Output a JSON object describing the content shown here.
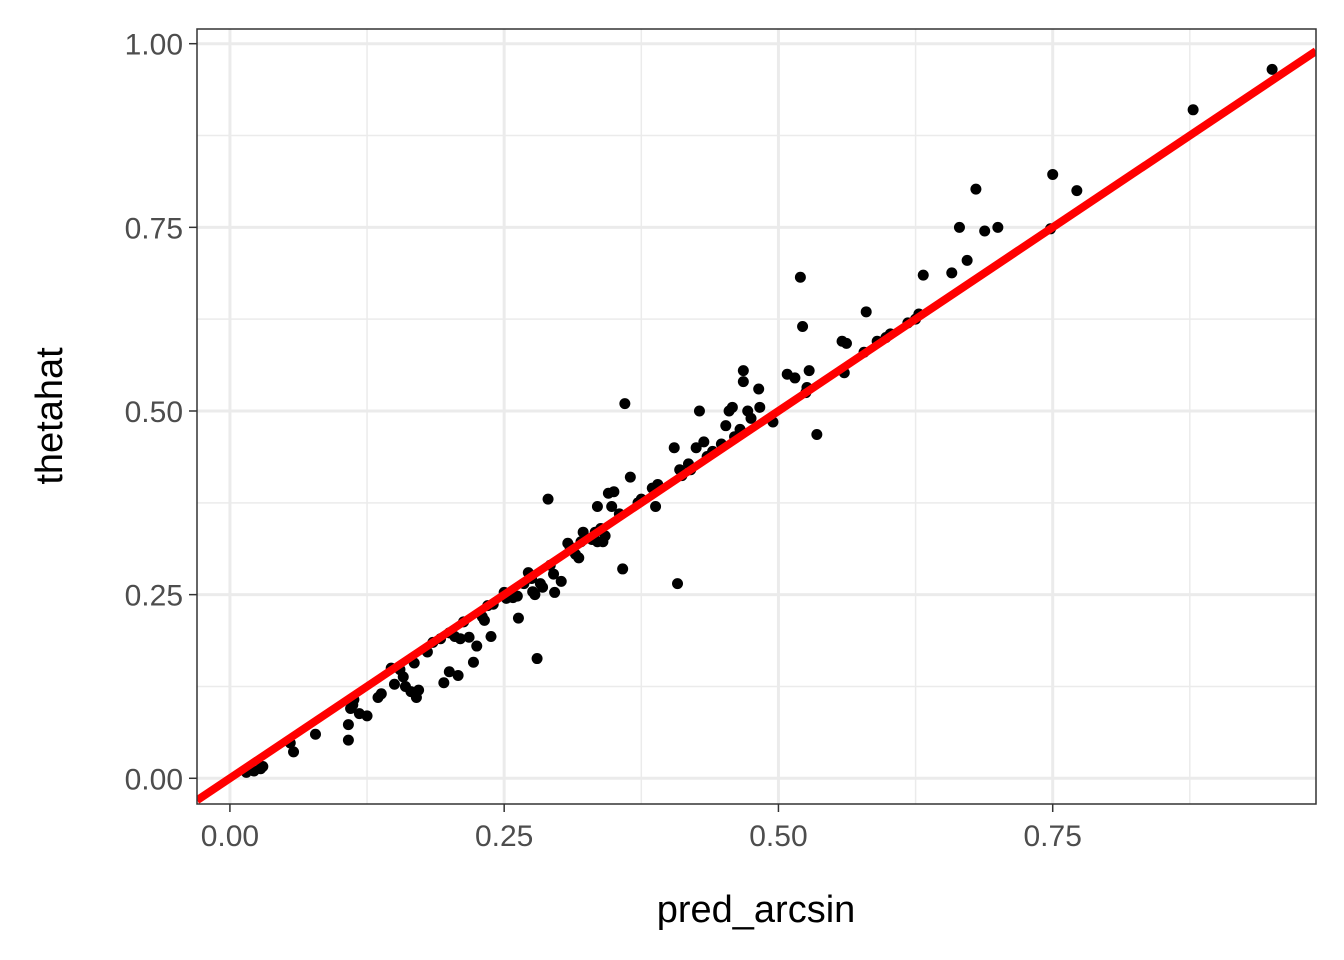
{
  "chart_data": {
    "type": "scatter",
    "title": "",
    "xlabel": "pred_arcsin",
    "ylabel": "thetahat",
    "xlim": [
      -0.03,
      0.99
    ],
    "ylim": [
      -0.035,
      1.02
    ],
    "x_ticks": [
      0,
      0.25,
      0.5,
      0.75
    ],
    "x_tick_labels": [
      "0.00",
      "0.25",
      "0.50",
      "0.75"
    ],
    "y_ticks": [
      0,
      0.25,
      0.5,
      0.75,
      1.0
    ],
    "y_tick_labels": [
      "0.00",
      "0.25",
      "0.50",
      "0.75",
      "1.00"
    ],
    "grid": true,
    "reference_line": {
      "type": "identity",
      "slope": 1,
      "intercept": 0,
      "color": "#ff0000"
    },
    "colors": {
      "points": "#000000",
      "line": "#ff0000",
      "grid": "#ebebeb",
      "panel_border": "#333333"
    },
    "points": [
      [
        0.015,
        0.008
      ],
      [
        0.022,
        0.01
      ],
      [
        0.028,
        0.013
      ],
      [
        0.03,
        0.016
      ],
      [
        0.055,
        0.048
      ],
      [
        0.058,
        0.036
      ],
      [
        0.078,
        0.06
      ],
      [
        0.108,
        0.052
      ],
      [
        0.108,
        0.073
      ],
      [
        0.11,
        0.095
      ],
      [
        0.112,
        0.1
      ],
      [
        0.113,
        0.107
      ],
      [
        0.118,
        0.088
      ],
      [
        0.125,
        0.085
      ],
      [
        0.135,
        0.11
      ],
      [
        0.138,
        0.115
      ],
      [
        0.147,
        0.15
      ],
      [
        0.15,
        0.128
      ],
      [
        0.155,
        0.148
      ],
      [
        0.158,
        0.138
      ],
      [
        0.16,
        0.125
      ],
      [
        0.165,
        0.118
      ],
      [
        0.168,
        0.157
      ],
      [
        0.17,
        0.11
      ],
      [
        0.172,
        0.12
      ],
      [
        0.18,
        0.172
      ],
      [
        0.185,
        0.185
      ],
      [
        0.192,
        0.19
      ],
      [
        0.195,
        0.13
      ],
      [
        0.2,
        0.198
      ],
      [
        0.2,
        0.145
      ],
      [
        0.205,
        0.193
      ],
      [
        0.208,
        0.14
      ],
      [
        0.21,
        0.19
      ],
      [
        0.213,
        0.213
      ],
      [
        0.218,
        0.192
      ],
      [
        0.222,
        0.158
      ],
      [
        0.225,
        0.18
      ],
      [
        0.23,
        0.22
      ],
      [
        0.232,
        0.215
      ],
      [
        0.235,
        0.235
      ],
      [
        0.238,
        0.193
      ],
      [
        0.24,
        0.237
      ],
      [
        0.25,
        0.253
      ],
      [
        0.252,
        0.245
      ],
      [
        0.255,
        0.25
      ],
      [
        0.258,
        0.246
      ],
      [
        0.262,
        0.248
      ],
      [
        0.263,
        0.218
      ],
      [
        0.268,
        0.265
      ],
      [
        0.272,
        0.28
      ],
      [
        0.275,
        0.272
      ],
      [
        0.276,
        0.254
      ],
      [
        0.278,
        0.25
      ],
      [
        0.28,
        0.163
      ],
      [
        0.283,
        0.265
      ],
      [
        0.285,
        0.26
      ],
      [
        0.29,
        0.38
      ],
      [
        0.292,
        0.29
      ],
      [
        0.295,
        0.278
      ],
      [
        0.296,
        0.253
      ],
      [
        0.302,
        0.268
      ],
      [
        0.308,
        0.32
      ],
      [
        0.31,
        0.315
      ],
      [
        0.315,
        0.305
      ],
      [
        0.318,
        0.3
      ],
      [
        0.32,
        0.322
      ],
      [
        0.322,
        0.335
      ],
      [
        0.33,
        0.325
      ],
      [
        0.333,
        0.335
      ],
      [
        0.335,
        0.37
      ],
      [
        0.335,
        0.322
      ],
      [
        0.338,
        0.34
      ],
      [
        0.34,
        0.322
      ],
      [
        0.342,
        0.33
      ],
      [
        0.345,
        0.388
      ],
      [
        0.348,
        0.37
      ],
      [
        0.35,
        0.39
      ],
      [
        0.355,
        0.36
      ],
      [
        0.358,
        0.285
      ],
      [
        0.36,
        0.51
      ],
      [
        0.365,
        0.41
      ],
      [
        0.372,
        0.375
      ],
      [
        0.375,
        0.38
      ],
      [
        0.385,
        0.395
      ],
      [
        0.388,
        0.37
      ],
      [
        0.39,
        0.4
      ],
      [
        0.405,
        0.45
      ],
      [
        0.408,
        0.265
      ],
      [
        0.41,
        0.42
      ],
      [
        0.412,
        0.412
      ],
      [
        0.418,
        0.428
      ],
      [
        0.42,
        0.42
      ],
      [
        0.425,
        0.45
      ],
      [
        0.428,
        0.5
      ],
      [
        0.432,
        0.458
      ],
      [
        0.435,
        0.438
      ],
      [
        0.44,
        0.445
      ],
      [
        0.448,
        0.455
      ],
      [
        0.452,
        0.48
      ],
      [
        0.455,
        0.5
      ],
      [
        0.458,
        0.505
      ],
      [
        0.46,
        0.465
      ],
      [
        0.465,
        0.475
      ],
      [
        0.468,
        0.54
      ],
      [
        0.468,
        0.555
      ],
      [
        0.472,
        0.5
      ],
      [
        0.475,
        0.49
      ],
      [
        0.482,
        0.53
      ],
      [
        0.483,
        0.505
      ],
      [
        0.495,
        0.485
      ],
      [
        0.508,
        0.55
      ],
      [
        0.515,
        0.545
      ],
      [
        0.52,
        0.682
      ],
      [
        0.522,
        0.615
      ],
      [
        0.525,
        0.525
      ],
      [
        0.526,
        0.532
      ],
      [
        0.528,
        0.555
      ],
      [
        0.535,
        0.468
      ],
      [
        0.558,
        0.595
      ],
      [
        0.56,
        0.552
      ],
      [
        0.562,
        0.592
      ],
      [
        0.578,
        0.58
      ],
      [
        0.58,
        0.635
      ],
      [
        0.59,
        0.595
      ],
      [
        0.598,
        0.6
      ],
      [
        0.602,
        0.605
      ],
      [
        0.618,
        0.62
      ],
      [
        0.625,
        0.625
      ],
      [
        0.628,
        0.632
      ],
      [
        0.632,
        0.685
      ],
      [
        0.658,
        0.688
      ],
      [
        0.665,
        0.75
      ],
      [
        0.672,
        0.705
      ],
      [
        0.68,
        0.802
      ],
      [
        0.688,
        0.745
      ],
      [
        0.7,
        0.75
      ],
      [
        0.748,
        0.748
      ],
      [
        0.75,
        0.822
      ],
      [
        0.772,
        0.8
      ],
      [
        0.878,
        0.91
      ],
      [
        0.95,
        0.965
      ]
    ]
  }
}
